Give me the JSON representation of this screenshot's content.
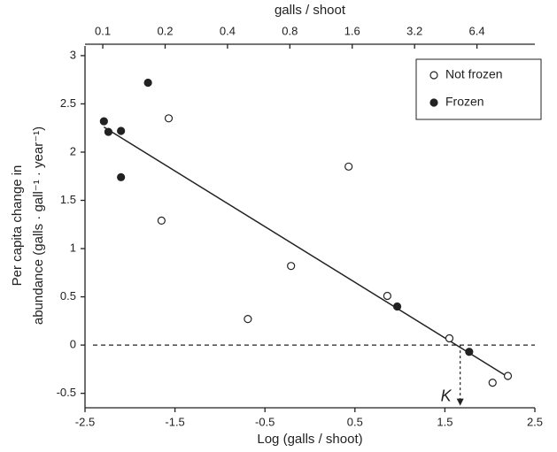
{
  "chart_data": {
    "type": "scatter",
    "xlabel": "Log (galls / shoot)",
    "ylabel": [
      "Per capita change in",
      "abundance (galls · gall⁻¹ · year⁻¹)"
    ],
    "x2label": "galls / shoot",
    "xlim": [
      -2.5,
      2.5
    ],
    "xticks": [
      -2.5,
      -1.5,
      -0.5,
      0.5,
      1.5,
      2.5
    ],
    "ylim": [
      -0.65,
      3.1
    ],
    "yticks": [
      -0.5,
      0,
      0.5,
      1,
      1.5,
      2,
      2.5,
      3
    ],
    "x2scale": "log",
    "x2ticks": [
      0.1,
      0.2,
      0.4,
      0.8,
      1.6,
      3.2,
      6.4
    ],
    "legend": "upper right",
    "series": [
      {
        "name": "Not frozen",
        "marker": "open",
        "color": "#222",
        "x": [
          -1.57,
          -1.65,
          -0.69,
          -0.21,
          0.43,
          0.86,
          1.55,
          2.03,
          2.2
        ],
        "values": [
          2.35,
          1.29,
          0.27,
          0.82,
          1.85,
          0.51,
          0.07,
          -0.39,
          -0.32
        ]
      },
      {
        "name": "Frozen",
        "marker": "filled",
        "color": "#222",
        "x": [
          -2.29,
          -2.24,
          -2.1,
          -2.1,
          -1.8,
          0.97,
          1.77
        ],
        "values": [
          2.32,
          2.21,
          2.22,
          1.74,
          2.72,
          0.4,
          -0.07
        ]
      }
    ],
    "fit": {
      "x": [
        -2.29,
        2.2
      ],
      "y": [
        2.26,
        -0.33
      ]
    },
    "reference_line": {
      "y": 0,
      "style": "dashed"
    },
    "annotations": [
      {
        "text": "K",
        "x": 1.67
      }
    ]
  }
}
